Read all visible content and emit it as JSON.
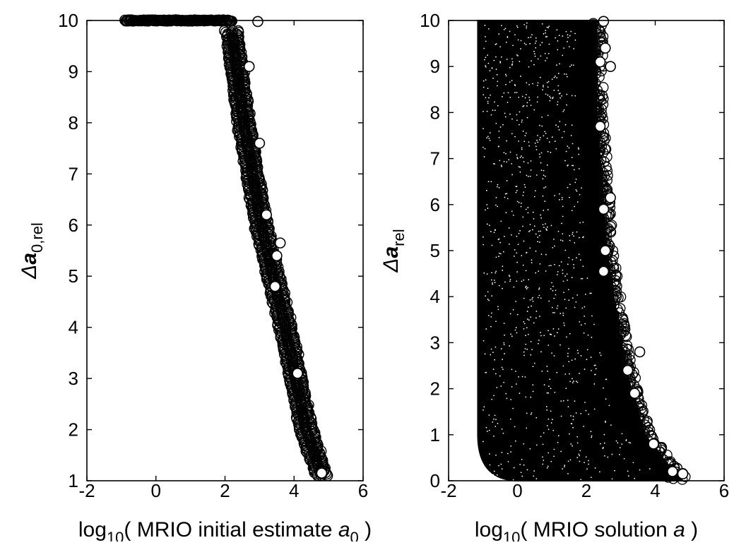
{
  "colors": {
    "marker": "#000000",
    "axes": "#000000",
    "background": "#ffffff"
  },
  "chart_data": [
    {
      "type": "scatter",
      "marker": "open-circle",
      "xlabel_parts": [
        "log",
        "10",
        "( MRIO initial estimate ",
        "a",
        "0",
        " )"
      ],
      "ylabel_parts": [
        "Δ",
        "a",
        "0,rel"
      ],
      "xlim": [
        -2,
        6
      ],
      "ylim": [
        1,
        10
      ],
      "x_ticks": [
        "-2",
        "0",
        "2",
        "4",
        "6"
      ],
      "y_ticks": [
        "1",
        "2",
        "3",
        "4",
        "5",
        "6",
        "7",
        "8",
        "9",
        "10"
      ],
      "grid": false,
      "legend": "none",
      "shape": "narrow band: clipped at y=10 for x from about -0.9 to 2.2, then bending down to about (4.8, 1.1)",
      "band_x": [
        -0.9,
        2.2,
        2.2,
        2.35,
        2.55,
        2.8,
        3.05,
        3.4,
        3.75,
        4.05,
        4.35,
        4.6,
        4.8
      ],
      "band_y": [
        10,
        10,
        9.8,
        9.0,
        8.0,
        7.0,
        6.0,
        5.0,
        4.0,
        3.0,
        2.0,
        1.5,
        1.1
      ],
      "points": [
        {
          "x": 2.95,
          "y": 9.98
        },
        {
          "x": 3.6,
          "y": 5.65
        },
        {
          "x": 3.5,
          "y": 5.4
        },
        {
          "x": 3.45,
          "y": 4.8
        },
        {
          "x": 3.2,
          "y": 6.2
        },
        {
          "x": 4.1,
          "y": 3.1
        },
        {
          "x": 4.8,
          "y": 1.15
        },
        {
          "x": 2.7,
          "y": 9.1
        },
        {
          "x": 3.0,
          "y": 7.6
        }
      ]
    },
    {
      "type": "scatter",
      "marker": "open-circle",
      "xlabel_parts": [
        "log",
        "10",
        "( MRIO solution ",
        "a",
        "",
        " )"
      ],
      "ylabel_parts": [
        "Δ",
        "a",
        "rel"
      ],
      "xlim": [
        -2,
        6
      ],
      "ylim": [
        0,
        10
      ],
      "x_ticks": [
        "-2",
        "0",
        "2",
        "4",
        "6"
      ],
      "y_ticks": [
        "0",
        "1",
        "2",
        "3",
        "4",
        "5",
        "6",
        "7",
        "8",
        "9",
        "10"
      ],
      "grid": false,
      "legend": "none",
      "shape": "dense wedge from x about -1.15 to 4.8; right edge of the cloud moves from about 2.5 at y=10 to about 4.8 at y=0",
      "cloud_left_x": -1.15,
      "cloud_edge_y": [
        10,
        9,
        8,
        7,
        6,
        5,
        4,
        3,
        2,
        1,
        0.5,
        0
      ],
      "cloud_edge_x": [
        2.3,
        2.3,
        2.3,
        2.4,
        2.5,
        2.6,
        2.8,
        3.0,
        3.3,
        3.7,
        4.2,
        4.8
      ],
      "points": [
        {
          "x": 2.5,
          "y": 9.98
        },
        {
          "x": 2.55,
          "y": 9.4
        },
        {
          "x": 2.4,
          "y": 9.1
        },
        {
          "x": 2.7,
          "y": 9.0
        },
        {
          "x": 2.4,
          "y": 7.7
        },
        {
          "x": 2.7,
          "y": 6.15
        },
        {
          "x": 2.5,
          "y": 5.9
        },
        {
          "x": 2.55,
          "y": 5.0
        },
        {
          "x": 2.5,
          "y": 4.55
        },
        {
          "x": 3.55,
          "y": 2.8
        },
        {
          "x": 3.2,
          "y": 2.4
        },
        {
          "x": 3.4,
          "y": 1.9
        },
        {
          "x": 3.95,
          "y": 0.8
        },
        {
          "x": 4.8,
          "y": 0.15
        },
        {
          "x": 4.5,
          "y": 0.2
        }
      ]
    }
  ]
}
